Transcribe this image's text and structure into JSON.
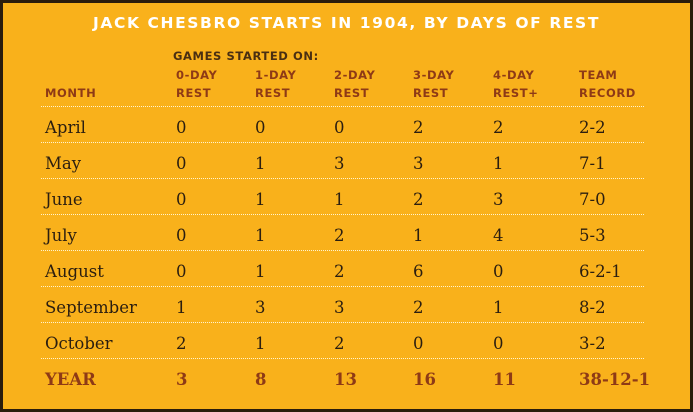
{
  "title": "JACK CHESBRO STARTS IN 1904, BY DAYS OF REST",
  "supheader": "GAMES STARTED ON:",
  "columns": [
    {
      "line1": "",
      "line2": "MONTH"
    },
    {
      "line1": "0-DAY",
      "line2": "REST"
    },
    {
      "line1": "1-DAY",
      "line2": "REST"
    },
    {
      "line1": "2-DAY",
      "line2": "REST"
    },
    {
      "line1": "3-DAY",
      "line2": "REST"
    },
    {
      "line1": "4-DAY",
      "line2": "REST+"
    },
    {
      "line1": "TEAM",
      "line2": "RECORD"
    }
  ],
  "rows": [
    [
      "April",
      "0",
      "0",
      "0",
      "2",
      "2",
      "2-2"
    ],
    [
      "May",
      "0",
      "1",
      "3",
      "3",
      "1",
      "7-1"
    ],
    [
      "June",
      "0",
      "1",
      "1",
      "2",
      "3",
      "7-0"
    ],
    [
      "July",
      "0",
      "1",
      "2",
      "1",
      "4",
      "5-3"
    ],
    [
      "August",
      "0",
      "1",
      "2",
      "6",
      "0",
      "6-2-1"
    ],
    [
      "September",
      "1",
      "3",
      "3",
      "2",
      "1",
      "8-2"
    ],
    [
      "October",
      "2",
      "1",
      "2",
      "0",
      "0",
      "3-2"
    ]
  ],
  "total": [
    "YEAR",
    "3",
    "8",
    "13",
    "16",
    "11",
    "38-12-1"
  ],
  "colors": {
    "background": "#f9b11b",
    "accent": "#8e3a16",
    "text": "#2b1e10",
    "rule": "#fff4cf",
    "frame": "#2a1c0c"
  }
}
